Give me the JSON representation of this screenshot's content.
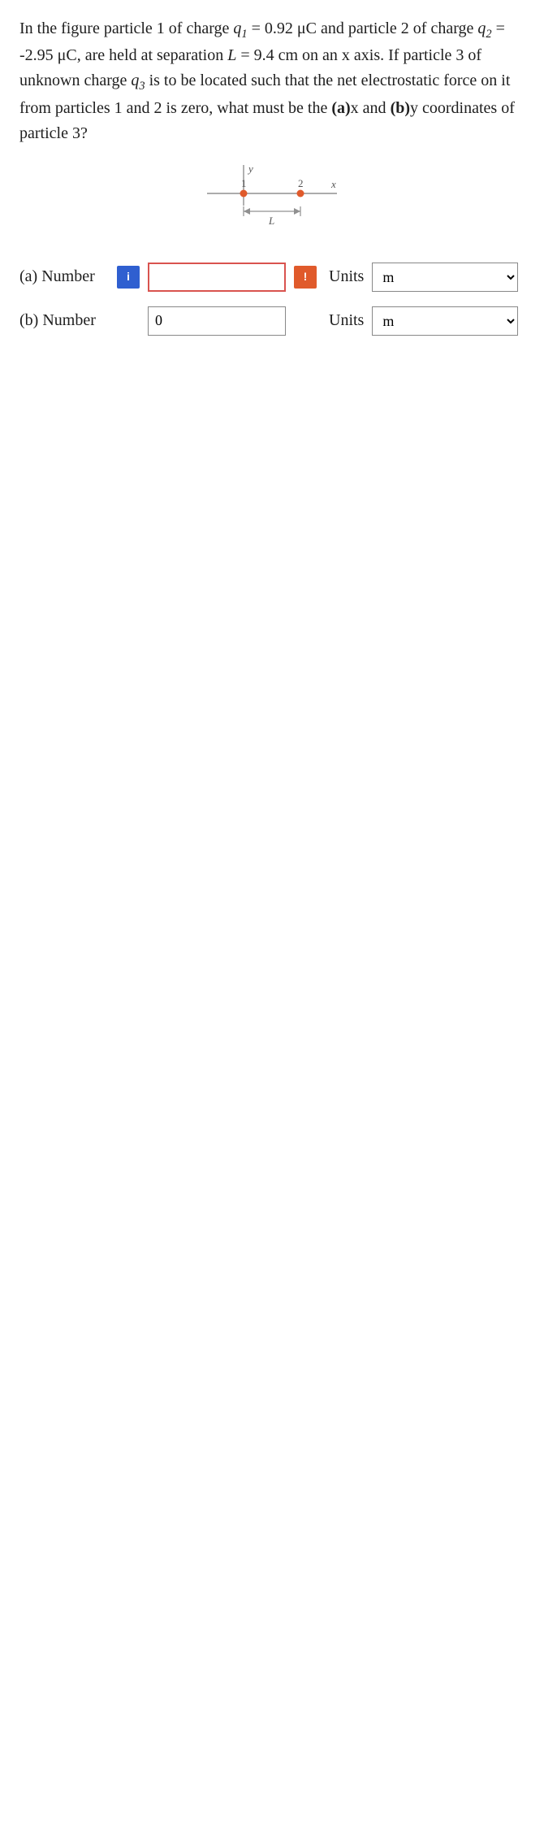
{
  "question": {
    "parts": [
      "In the figure particle 1 of charge ",
      {
        "var": "q",
        "sub": "1"
      },
      " = 0.92 μC and particle 2 of charge ",
      {
        "var": "q",
        "sub": "2"
      },
      " = -2.95 μC, are held at separation ",
      {
        "var": "L"
      },
      " = 9.4 cm on an x axis. If particle 3 of unknown charge ",
      {
        "var": "q",
        "sub": "3"
      },
      " is to be located such that the net electrostatic force on it from particles 1 and 2 is zero, what must be the ",
      {
        "bold": "(a)"
      },
      "x and ",
      {
        "bold": "(b)"
      },
      "y coordinates of particle 3?"
    ]
  },
  "figure": {
    "axis_y": "y",
    "axis_x": "x",
    "p1_label": "1",
    "p2_label": "2",
    "L_label": "L",
    "colors": {
      "axis": "#808080",
      "point": "#e05a2b",
      "text": "#555"
    }
  },
  "answers": {
    "a": {
      "label": "(a) Number",
      "value": "",
      "flag_info": "i",
      "flag_error": "!",
      "units_label": "Units",
      "units_value": "m",
      "show_error": true
    },
    "b": {
      "label": "(b) Number",
      "value": "0",
      "units_label": "Units",
      "units_value": "m",
      "show_error": false
    }
  }
}
